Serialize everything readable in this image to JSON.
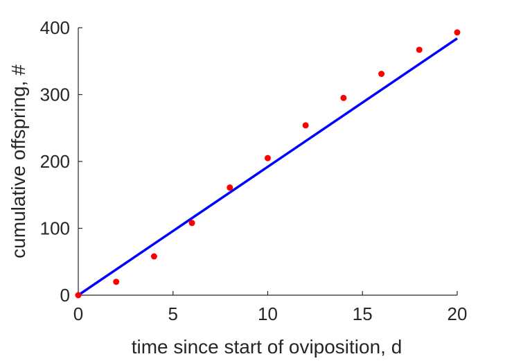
{
  "chart_data": {
    "type": "scatter",
    "title": "",
    "xlabel": "time since start of oviposition, d",
    "ylabel": "cumulative offspring, #",
    "xlim": [
      0,
      20
    ],
    "ylim": [
      0,
      400
    ],
    "xticks": [
      0,
      5,
      10,
      15,
      20
    ],
    "yticks": [
      0,
      100,
      200,
      300,
      400
    ],
    "grid": false,
    "legend": "none",
    "series": [
      {
        "type": "scatter",
        "color": "#ff0000",
        "x": [
          0,
          2,
          4,
          6,
          8,
          10,
          12,
          14,
          16,
          18,
          20
        ],
        "y": [
          0,
          20,
          58,
          108,
          161,
          205,
          254,
          295,
          331,
          367,
          393
        ]
      },
      {
        "type": "line",
        "color": "#0000ff",
        "x": [
          0,
          20
        ],
        "y": [
          0,
          384
        ]
      }
    ]
  }
}
